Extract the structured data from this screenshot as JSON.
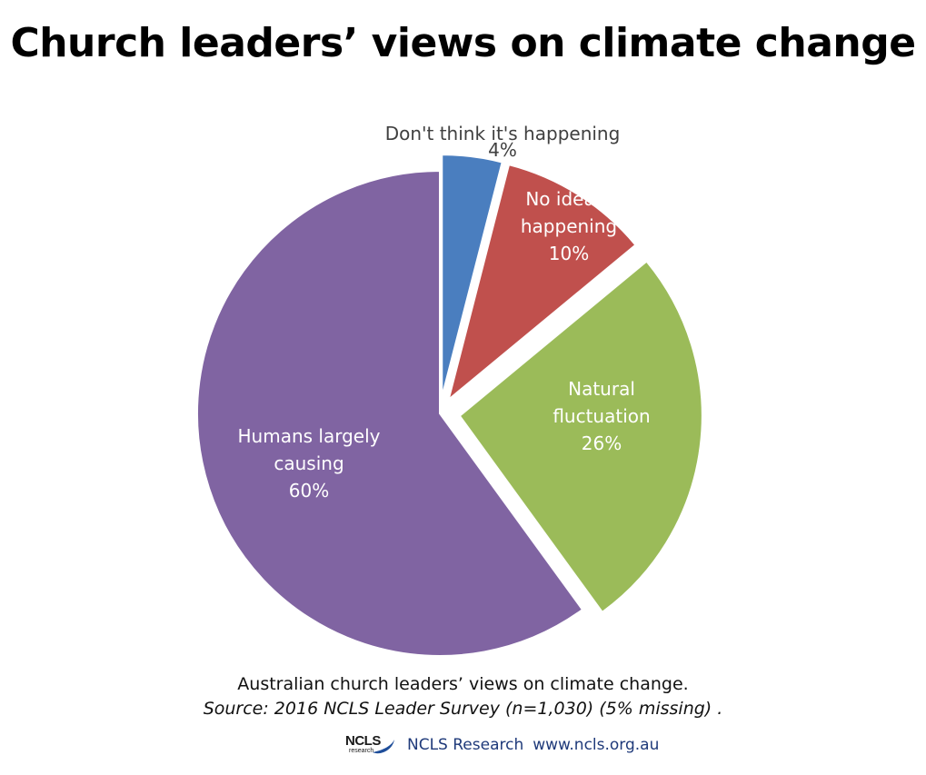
{
  "title": "Church leaders’ views on climate change",
  "chart_data": {
    "type": "pie",
    "slices": [
      {
        "label": "Don't think it's happening",
        "value": 4,
        "value_label": "4%",
        "color": "#4a7ebf"
      },
      {
        "label": "No idea if happening",
        "value": 10,
        "value_label": "10%",
        "color": "#c0504d"
      },
      {
        "label": "Natural fluctuation",
        "value": 26,
        "value_label": "26%",
        "color": "#9bbb59"
      },
      {
        "label": "Humans largely causing",
        "value": 60,
        "value_label": "60%",
        "color": "#8064a2"
      }
    ]
  },
  "caption": {
    "line1": "Australian church leaders’ views on climate change.",
    "line2": "Source: 2016 NCLS Leader Survey (n=1,030) (5% missing) ."
  },
  "footer": {
    "logo_text": "NCLS",
    "logo_subtext": "research",
    "org": "NCLS Research",
    "url": "www.ncls.org.au"
  }
}
